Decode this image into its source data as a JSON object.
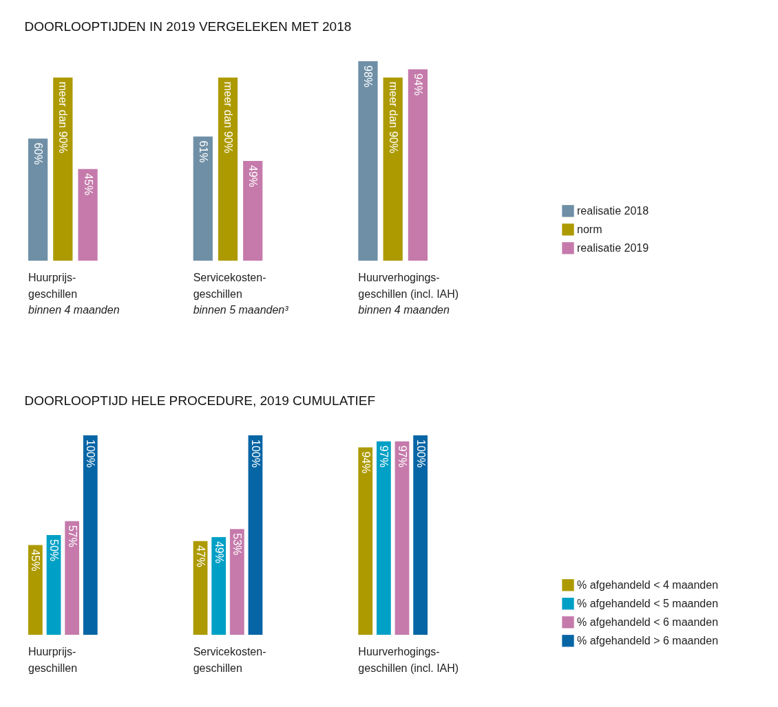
{
  "chart_data": [
    {
      "type": "bar",
      "title": "DOORLOOPTIJDEN IN 2019 VERGELEKEN MET 2018",
      "categories": [
        "Huurprijs-geschillen",
        "Servicekosten-geschillen",
        "Huurverhogings-geschillen (incl. IAH)"
      ],
      "series": [
        {
          "name": "realisatie 2018",
          "color": "#6e8fa6",
          "values": [
            60,
            61,
            98
          ],
          "value_labels": [
            "60%",
            "61%",
            "98%"
          ]
        },
        {
          "name": "norm",
          "color": "#ad9a00",
          "values": [
            90,
            90,
            90
          ],
          "value_labels": [
            "meer dan 90%",
            "meer dan 90%",
            "meer dan 90%"
          ]
        },
        {
          "name": "realisatie 2019",
          "color": "#c57aab",
          "values": [
            45,
            49,
            94
          ],
          "value_labels": [
            "45%",
            "49%",
            "94%"
          ]
        }
      ],
      "annotations": [
        "binnen 4 maanden",
        "binnen 5 maanden³",
        "binnen 4 maanden"
      ],
      "legend": "right",
      "grid": false
    },
    {
      "type": "bar",
      "title": "DOORLOOPTIJD HELE PROCEDURE, 2019 CUMULATIEF",
      "categories": [
        "Huurprijs-geschillen",
        "Servicekosten-geschillen",
        "Huurverhogings-geschillen (incl. IAH)"
      ],
      "series": [
        {
          "name": "% afgehandeld < 4 maanden",
          "color": "#ad9a00",
          "values": [
            45,
            47,
            94
          ],
          "value_labels": [
            "45%",
            "47%",
            "94%"
          ]
        },
        {
          "name": "% afgehandeld < 5 maanden",
          "color": "#00a0c6",
          "values": [
            50,
            49,
            97
          ],
          "value_labels": [
            "50%",
            "49%",
            "97%"
          ]
        },
        {
          "name": "% afgehandeld < 6 maanden",
          "color": "#c57aab",
          "values": [
            57,
            53,
            97
          ],
          "value_labels": [
            "57%",
            "53%",
            "97%"
          ]
        },
        {
          "name": "% afgehandeld > 6 maanden",
          "color": "#0565a5",
          "values": [
            100,
            100,
            100
          ],
          "value_labels": [
            "100%",
            "100%",
            "100%"
          ]
        }
      ],
      "legend": "right",
      "grid": false
    }
  ]
}
